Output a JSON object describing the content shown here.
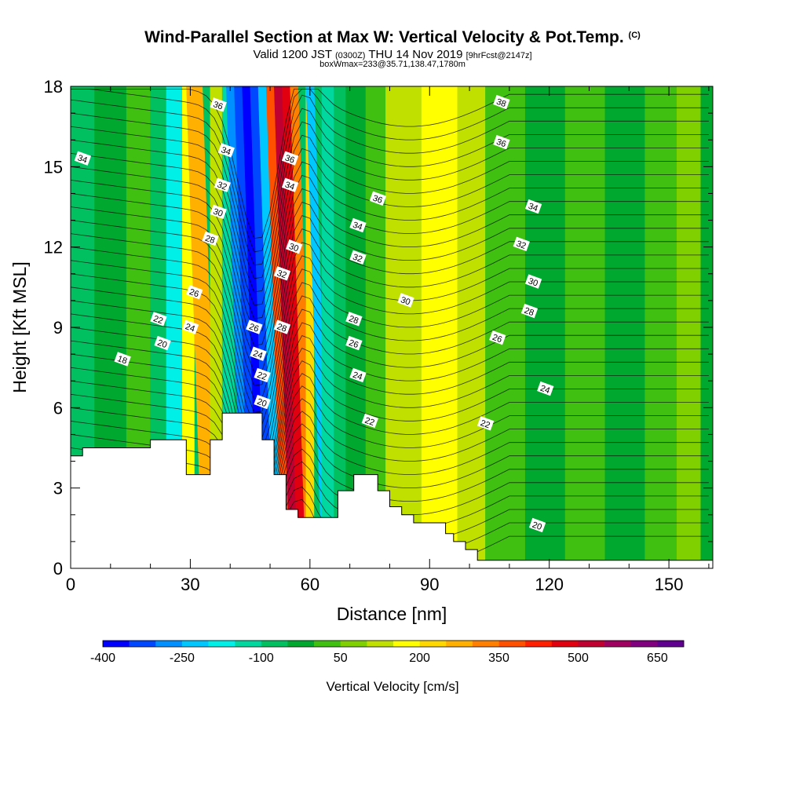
{
  "title": "Wind-Parallel Section at Max W: Vertical Velocity & Pot.Temp.",
  "title_mark": "(C)",
  "subtitle_main": "Valid 1200 JST",
  "subtitle_utc": "(0300Z)",
  "subtitle_date": "THU 14 Nov 2019",
  "subtitle_fcst": "[9hrFcst@2147z]",
  "subtitle2": "boxWmax=233@35.71,138.47,1780m",
  "chart_data": {
    "type": "heatmap",
    "xlabel": "Distance [nm]",
    "ylabel": "Height [Kft MSL]",
    "xlim": [
      0,
      161
    ],
    "ylim": [
      0,
      18
    ],
    "x_ticks": [
      "0",
      "30",
      "60",
      "90",
      "120",
      "150"
    ],
    "y_ticks": [
      "0",
      "3",
      "6",
      "9",
      "12",
      "15",
      "18"
    ],
    "terrain": [
      [
        0,
        4.2
      ],
      [
        3,
        4.2
      ],
      [
        3,
        4.5
      ],
      [
        14,
        4.5
      ],
      [
        20,
        4.5
      ],
      [
        20,
        4.8
      ],
      [
        29,
        4.8
      ],
      [
        29,
        3.5
      ],
      [
        35,
        3.5
      ],
      [
        35,
        4.8
      ],
      [
        38,
        4.8
      ],
      [
        38,
        5.8
      ],
      [
        48,
        5.8
      ],
      [
        48,
        4.8
      ],
      [
        51,
        4.8
      ],
      [
        51,
        3.5
      ],
      [
        54,
        3.5
      ],
      [
        54,
        2.2
      ],
      [
        57,
        2.2
      ],
      [
        57,
        1.9
      ],
      [
        67,
        1.9
      ],
      [
        67,
        2.9
      ],
      [
        71,
        2.9
      ],
      [
        71,
        3.5
      ],
      [
        77,
        3.5
      ],
      [
        77,
        2.9
      ],
      [
        80,
        2.9
      ],
      [
        80,
        2.3
      ],
      [
        83,
        2.3
      ],
      [
        83,
        2.0
      ],
      [
        86,
        2.0
      ],
      [
        86,
        1.7
      ],
      [
        94,
        1.7
      ],
      [
        94,
        1.3
      ],
      [
        96,
        1.3
      ],
      [
        96,
        1.0
      ],
      [
        99,
        1.0
      ],
      [
        99,
        0.7
      ],
      [
        102,
        0.7
      ],
      [
        102,
        0.3
      ],
      [
        161,
        0.3
      ]
    ],
    "velocity_bands": [
      {
        "x0": 0,
        "x1": 6,
        "value": -90
      },
      {
        "x0": 6,
        "x1": 14,
        "value": -40
      },
      {
        "x0": 14,
        "x1": 20,
        "value": 10
      },
      {
        "x0": 20,
        "x1": 24,
        "value": -70
      },
      {
        "x0": 24,
        "x1": 28,
        "value": -180
      },
      {
        "x0": 28,
        "x1": 31,
        "value": 160
      },
      {
        "x0": 31,
        "x1": 35,
        "value": 270
      },
      {
        "x0": 35,
        "x1": 38,
        "value": 140
      },
      {
        "x0": 38,
        "x1": 41,
        "value": -140
      },
      {
        "x0": 41,
        "x1": 43,
        "value": -260
      },
      {
        "x0": 43,
        "x1": 45,
        "value": -340
      },
      {
        "x0": 45,
        "x1": 47,
        "value": -390
      },
      {
        "x0": 47,
        "x1": 49,
        "value": -320
      },
      {
        "x0": 49,
        "x1": 51,
        "value": -220
      },
      {
        "x0": 51,
        "x1": 53,
        "value": 380
      },
      {
        "x0": 53,
        "x1": 55,
        "value": 500
      },
      {
        "x0": 55,
        "x1": 57,
        "value": 470
      },
      {
        "x0": 57,
        "x1": 59,
        "value": 330
      },
      {
        "x0": 59,
        "x1": 61,
        "value": 200
      },
      {
        "x0": 61,
        "x1": 63,
        "value": -210
      },
      {
        "x0": 63,
        "x1": 66,
        "value": -130
      },
      {
        "x0": 66,
        "x1": 69,
        "value": -70
      },
      {
        "x0": 69,
        "x1": 74,
        "value": -20
      },
      {
        "x0": 74,
        "x1": 79,
        "value": 30
      },
      {
        "x0": 79,
        "x1": 88,
        "value": 110
      },
      {
        "x0": 88,
        "x1": 97,
        "value": 150
      },
      {
        "x0": 97,
        "x1": 104,
        "value": 100
      },
      {
        "x0": 104,
        "x1": 114,
        "value": 20
      },
      {
        "x0": 114,
        "x1": 124,
        "value": -10
      },
      {
        "x0": 124,
        "x1": 134,
        "value": 30
      },
      {
        "x0": 134,
        "x1": 144,
        "value": -20
      },
      {
        "x0": 144,
        "x1": 152,
        "value": 20
      },
      {
        "x0": 152,
        "x1": 158,
        "value": 50
      },
      {
        "x0": 158,
        "x1": 161,
        "value": -30
      }
    ],
    "contour_labels": [
      {
        "text": "34",
        "x": 3,
        "y": 15.3
      },
      {
        "text": "18",
        "x": 13,
        "y": 7.8
      },
      {
        "text": "22",
        "x": 22,
        "y": 9.3
      },
      {
        "text": "20",
        "x": 23,
        "y": 8.4
      },
      {
        "text": "24",
        "x": 30,
        "y": 9.0
      },
      {
        "text": "26",
        "x": 31,
        "y": 10.3
      },
      {
        "text": "28",
        "x": 35,
        "y": 12.3
      },
      {
        "text": "30",
        "x": 37,
        "y": 13.3
      },
      {
        "text": "32",
        "x": 38,
        "y": 14.3
      },
      {
        "text": "34",
        "x": 39,
        "y": 15.6
      },
      {
        "text": "36",
        "x": 37,
        "y": 17.3
      },
      {
        "text": "26",
        "x": 46,
        "y": 9.0
      },
      {
        "text": "24",
        "x": 47,
        "y": 8.0
      },
      {
        "text": "22",
        "x": 48,
        "y": 7.2
      },
      {
        "text": "20",
        "x": 48,
        "y": 6.2
      },
      {
        "text": "28",
        "x": 53,
        "y": 9.0
      },
      {
        "text": "32",
        "x": 53,
        "y": 11.0
      },
      {
        "text": "30",
        "x": 56,
        "y": 12.0
      },
      {
        "text": "34",
        "x": 55,
        "y": 14.3
      },
      {
        "text": "36",
        "x": 55,
        "y": 15.3
      },
      {
        "text": "36",
        "x": 77,
        "y": 13.8
      },
      {
        "text": "34",
        "x": 72,
        "y": 12.8
      },
      {
        "text": "32",
        "x": 72,
        "y": 11.6
      },
      {
        "text": "30",
        "x": 84,
        "y": 10.0
      },
      {
        "text": "28",
        "x": 71,
        "y": 9.3
      },
      {
        "text": "26",
        "x": 71,
        "y": 8.4
      },
      {
        "text": "24",
        "x": 72,
        "y": 7.2
      },
      {
        "text": "22",
        "x": 75,
        "y": 5.5
      },
      {
        "text": "38",
        "x": 108,
        "y": 17.4
      },
      {
        "text": "36",
        "x": 108,
        "y": 15.9
      },
      {
        "text": "34",
        "x": 116,
        "y": 13.5
      },
      {
        "text": "32",
        "x": 113,
        "y": 12.1
      },
      {
        "text": "30",
        "x": 116,
        "y": 10.7
      },
      {
        "text": "28",
        "x": 115,
        "y": 9.6
      },
      {
        "text": "26",
        "x": 107,
        "y": 8.6
      },
      {
        "text": "24",
        "x": 119,
        "y": 6.7
      },
      {
        "text": "22",
        "x": 104,
        "y": 5.4
      },
      {
        "text": "20",
        "x": 117,
        "y": 1.6
      }
    ],
    "colorbar": {
      "label": "Vertical Velocity [cm/s]",
      "tick_labels": [
        "-400",
        "-250",
        "-100",
        "50",
        "200",
        "350",
        "500",
        "650"
      ],
      "colors": [
        "#0000ff",
        "#0048ff",
        "#0090ff",
        "#00c8ff",
        "#00f0e8",
        "#00d8a0",
        "#00c060",
        "#00a830",
        "#40c010",
        "#80d000",
        "#c0e000",
        "#ffff00",
        "#ffd800",
        "#ffb000",
        "#ff8000",
        "#ff5000",
        "#ff2000",
        "#e00010",
        "#c00030",
        "#a00060",
        "#800080",
        "#600090"
      ]
    }
  }
}
